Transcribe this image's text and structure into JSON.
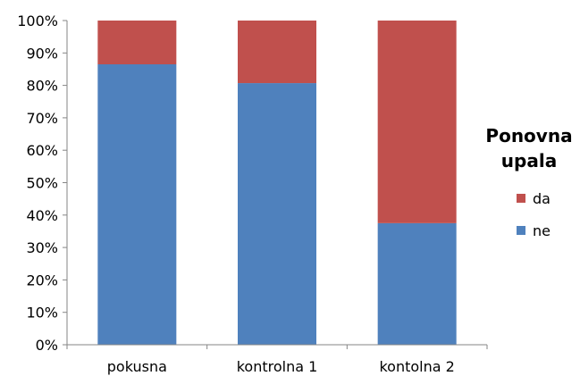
{
  "chart_data": {
    "type": "bar",
    "stacked": true,
    "categories": [
      "pokusna",
      "kontrolna 1",
      "kontolna 2"
    ],
    "series": [
      {
        "name": "ne",
        "color": "#4F81BD",
        "values": [
          86.5,
          80.7,
          37.5
        ]
      },
      {
        "name": "da",
        "color": "#C0504D",
        "values": [
          13.5,
          19.3,
          62.5
        ]
      }
    ],
    "ylim": [
      0,
      100
    ],
    "yticks": [
      "0%",
      "10%",
      "20%",
      "30%",
      "40%",
      "50%",
      "60%",
      "70%",
      "80%",
      "90%",
      "100%"
    ],
    "grid": false,
    "legend": {
      "title": "Ponovna upala",
      "placement": "right",
      "entries": [
        {
          "label": "da",
          "color": "#C0504D"
        },
        {
          "label": "ne",
          "color": "#4F81BD"
        }
      ]
    }
  }
}
